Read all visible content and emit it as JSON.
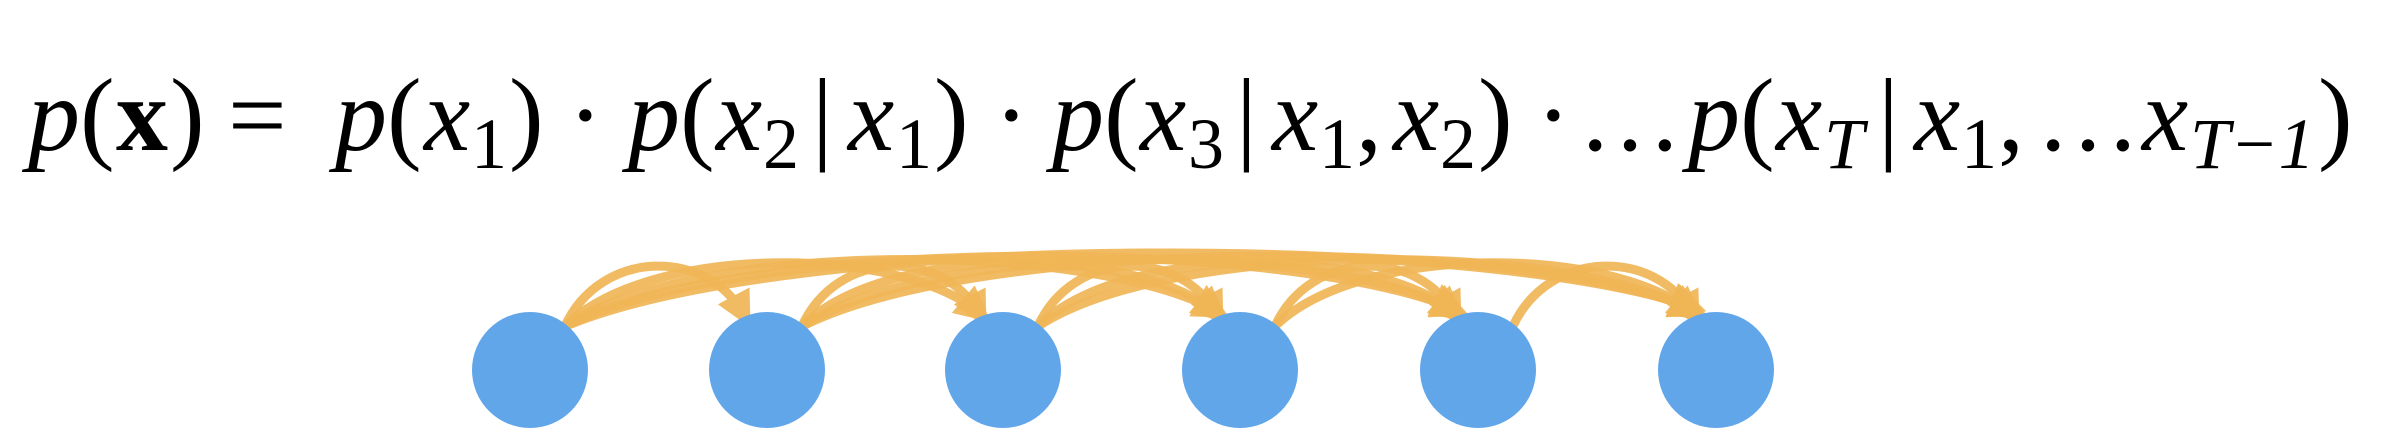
{
  "formula": {
    "lhs_func": "p",
    "lhs_open": "(",
    "lhs_var": "x",
    "lhs_close": ")",
    "equals": "=",
    "t1_func": "p",
    "t1_open": "(",
    "t1_var": "x",
    "t1_sub": "1",
    "t1_close": ")",
    "dot1": "·",
    "t2_func": "p",
    "t2_open": "(",
    "t2_var": "x",
    "t2_sub": "2",
    "t2_bar": "|",
    "t2_cond_var": "x",
    "t2_cond_sub": "1",
    "t2_close": ")",
    "dot2": "·",
    "t3_func": "p",
    "t3_open": "(",
    "t3_var": "x",
    "t3_sub": "3",
    "t3_bar": "|",
    "t3_c1_var": "x",
    "t3_c1_sub": "1",
    "t3_comma": ",",
    "t3_c2_var": "x",
    "t3_c2_sub": "2",
    "t3_close": ")",
    "dot3": "·",
    "ellipsis1": "…",
    "tT_func": "p",
    "tT_open": "(",
    "tT_var": "x",
    "tT_sub": "T",
    "tT_bar": "|",
    "tT_c1_var": "x",
    "tT_c1_sub": "1",
    "tT_comma": ",",
    "tT_ellipsis": "…",
    "tT_c2_var": "x",
    "tT_c2_sub": "T−1",
    "tT_close": ")"
  },
  "graph": {
    "node_count": 6,
    "node_color": "#62a6ea",
    "arrow_color": "#f0b656",
    "edges": "every node points to all later nodes (fully connected autoregressive)"
  }
}
